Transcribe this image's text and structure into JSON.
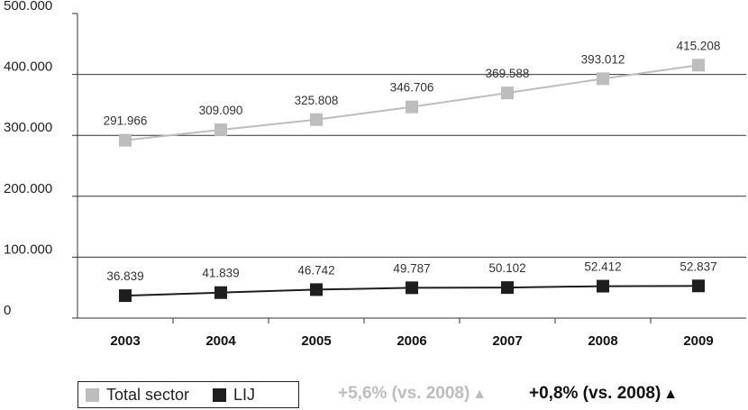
{
  "colors": {
    "total": "#bdbdbd",
    "lij": "#1e1e1e",
    "grid": "#333333"
  },
  "chart_data": {
    "type": "line",
    "categories": [
      "2003",
      "2004",
      "2005",
      "2006",
      "2007",
      "2008",
      "2009"
    ],
    "series": [
      {
        "name": "Total sector",
        "values": [
          291966,
          309090,
          325808,
          346706,
          369588,
          393012,
          415208
        ],
        "labels": [
          "291.966",
          "309.090",
          "325.808",
          "346.706",
          "369.588",
          "393.012",
          "415.208"
        ]
      },
      {
        "name": "LIJ",
        "values": [
          36839,
          41839,
          46742,
          49787,
          50102,
          52412,
          52837
        ],
        "labels": [
          "36.839",
          "41.839",
          "46.742",
          "49.787",
          "50.102",
          "52.412",
          "52.837"
        ]
      }
    ],
    "yticks": [
      0,
      100000,
      200000,
      300000,
      400000,
      500000
    ],
    "ytick_labels": [
      "0",
      "100.000",
      "200.000",
      "300.000",
      "400.000",
      "500.000"
    ],
    "ylim": [
      0,
      500000
    ],
    "grid": true,
    "legend_position": "bottom-left"
  },
  "legend": {
    "total_label": "Total sector",
    "lij_label": "LIJ"
  },
  "changes": {
    "total": {
      "text": "+5,6% (vs. 2008)",
      "arrow": "▲"
    },
    "lij": {
      "text": "+0,8% (vs. 2008)",
      "arrow": "▲"
    }
  }
}
